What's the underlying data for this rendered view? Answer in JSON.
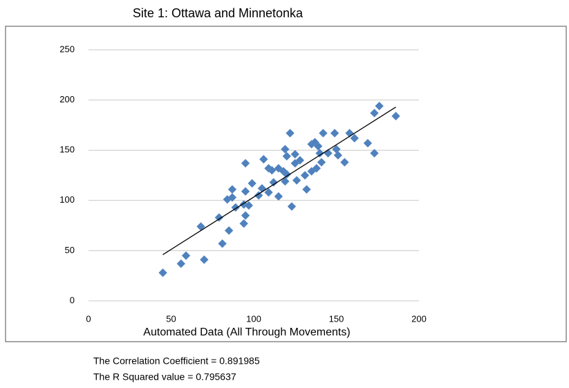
{
  "chart_data": {
    "type": "scatter",
    "title": "Site 1: Ottawa and Minnetonka",
    "x_label": "Automated Data (All Through Movements)",
    "color": "#4f81bd",
    "x": [
      45,
      56,
      59,
      70,
      68,
      79,
      81,
      85,
      84,
      87,
      87,
      89,
      94,
      95,
      95,
      95,
      94,
      97,
      99,
      103,
      105,
      106,
      109,
      109,
      111,
      112,
      115,
      115,
      118,
      119,
      119,
      120,
      120,
      122,
      123,
      125,
      126,
      125,
      128,
      131,
      132,
      135,
      135,
      137,
      138,
      139,
      140,
      141,
      142,
      145,
      149,
      150,
      151,
      155,
      158,
      161,
      169,
      173,
      173,
      176,
      186
    ],
    "values": [
      28,
      37,
      45,
      41,
      74,
      83,
      57,
      70,
      101,
      103,
      111,
      93,
      77,
      85,
      137,
      109,
      96,
      95,
      117,
      105,
      112,
      141,
      108,
      132,
      130,
      118,
      104,
      132,
      129,
      151,
      119,
      126,
      144,
      167,
      94,
      146,
      120,
      137,
      140,
      125,
      111,
      129,
      156,
      158,
      132,
      154,
      147,
      138,
      167,
      147,
      167,
      151,
      145,
      138,
      167,
      162,
      157,
      147,
      187,
      194,
      184
    ],
    "trendline": {
      "x": [
        45,
        186
      ],
      "y": [
        46,
        193
      ]
    },
    "xlim": [
      0,
      200
    ],
    "xticks": [
      0,
      50,
      100,
      150,
      200
    ],
    "ylim": [
      0,
      250
    ],
    "yticks": [
      0,
      50,
      100,
      150,
      200,
      250
    ],
    "grid": true
  },
  "notes": [
    "The Correlation Coefficient = 0.891985",
    "The R Squared value = 0.795637"
  ]
}
